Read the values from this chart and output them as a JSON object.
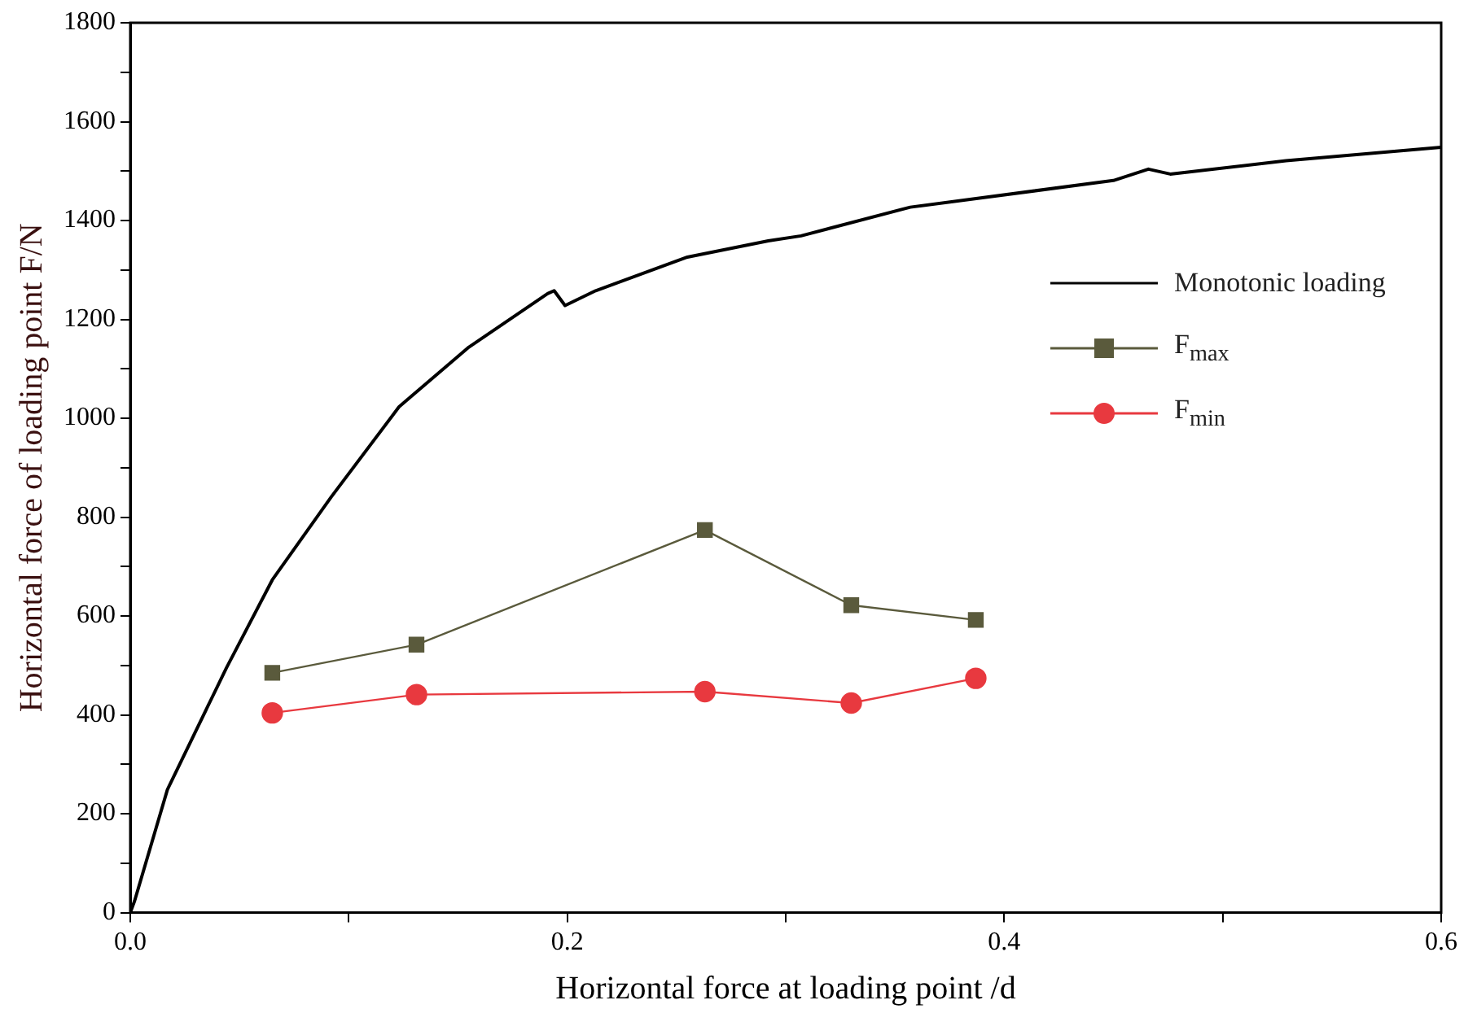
{
  "chart_data": {
    "type": "line",
    "xlabel": "Horizontal force at loading point /d",
    "ylabel": "Horizontal force of loading point F/N",
    "xlim": [
      0,
      0.6
    ],
    "ylim": [
      0,
      1800
    ],
    "xticks": [
      {
        "value": 0,
        "label": "0.0"
      },
      {
        "value": 0.1,
        "label": null
      },
      {
        "value": 0.2,
        "label": "0.2"
      },
      {
        "value": 0.3,
        "label": null
      },
      {
        "value": 0.4,
        "label": "0.4"
      },
      {
        "value": 0.5,
        "label": null
      },
      {
        "value": 0.6,
        "label": "0.6"
      }
    ],
    "yticks": [
      0,
      {
        "value": 100,
        "label": null
      },
      200,
      {
        "value": 300,
        "label": null
      },
      400,
      {
        "value": 500,
        "label": null
      },
      600,
      {
        "value": 700,
        "label": null
      },
      800,
      {
        "value": 900,
        "label": null
      },
      1000,
      {
        "value": 1100,
        "label": null
      },
      1200,
      {
        "value": 1300,
        "label": null
      },
      1400,
      {
        "value": 1500,
        "label": null
      },
      1600,
      {
        "value": 1700,
        "label": null
      },
      1800
    ],
    "grid": false,
    "legend": "top right",
    "line_style": "solid",
    "series": [
      {
        "name": "Monotonic loading",
        "color": "#000000",
        "marker": "none",
        "x": [
          0,
          0.002,
          0.017,
          0.044,
          0.065,
          0.092,
          0.123,
          0.155,
          0.191,
          0.194,
          0.199,
          0.213,
          0.255,
          0.292,
          0.307,
          0.357,
          0.45,
          0.466,
          0.476,
          0.529,
          0.6
        ],
        "values": [
          0,
          24,
          249,
          495,
          673,
          841,
          1023,
          1144,
          1252,
          1258,
          1228,
          1258,
          1326,
          1359,
          1369,
          1427,
          1481,
          1504,
          1494,
          1521,
          1548
        ]
      },
      {
        "name": "F$_{max}$",
        "color": "#5a5a3c",
        "marker": "square",
        "x": [
          0.065,
          0.131,
          0.263,
          0.33,
          0.387
        ],
        "values": [
          485,
          542,
          774,
          622,
          592
        ]
      },
      {
        "name": "F$_{min}$",
        "color": "#e8393f",
        "marker": "circle",
        "x": [
          0.065,
          0.131,
          0.263,
          0.33,
          0.387
        ],
        "values": [
          404,
          441,
          447,
          424,
          474
        ]
      }
    ]
  }
}
